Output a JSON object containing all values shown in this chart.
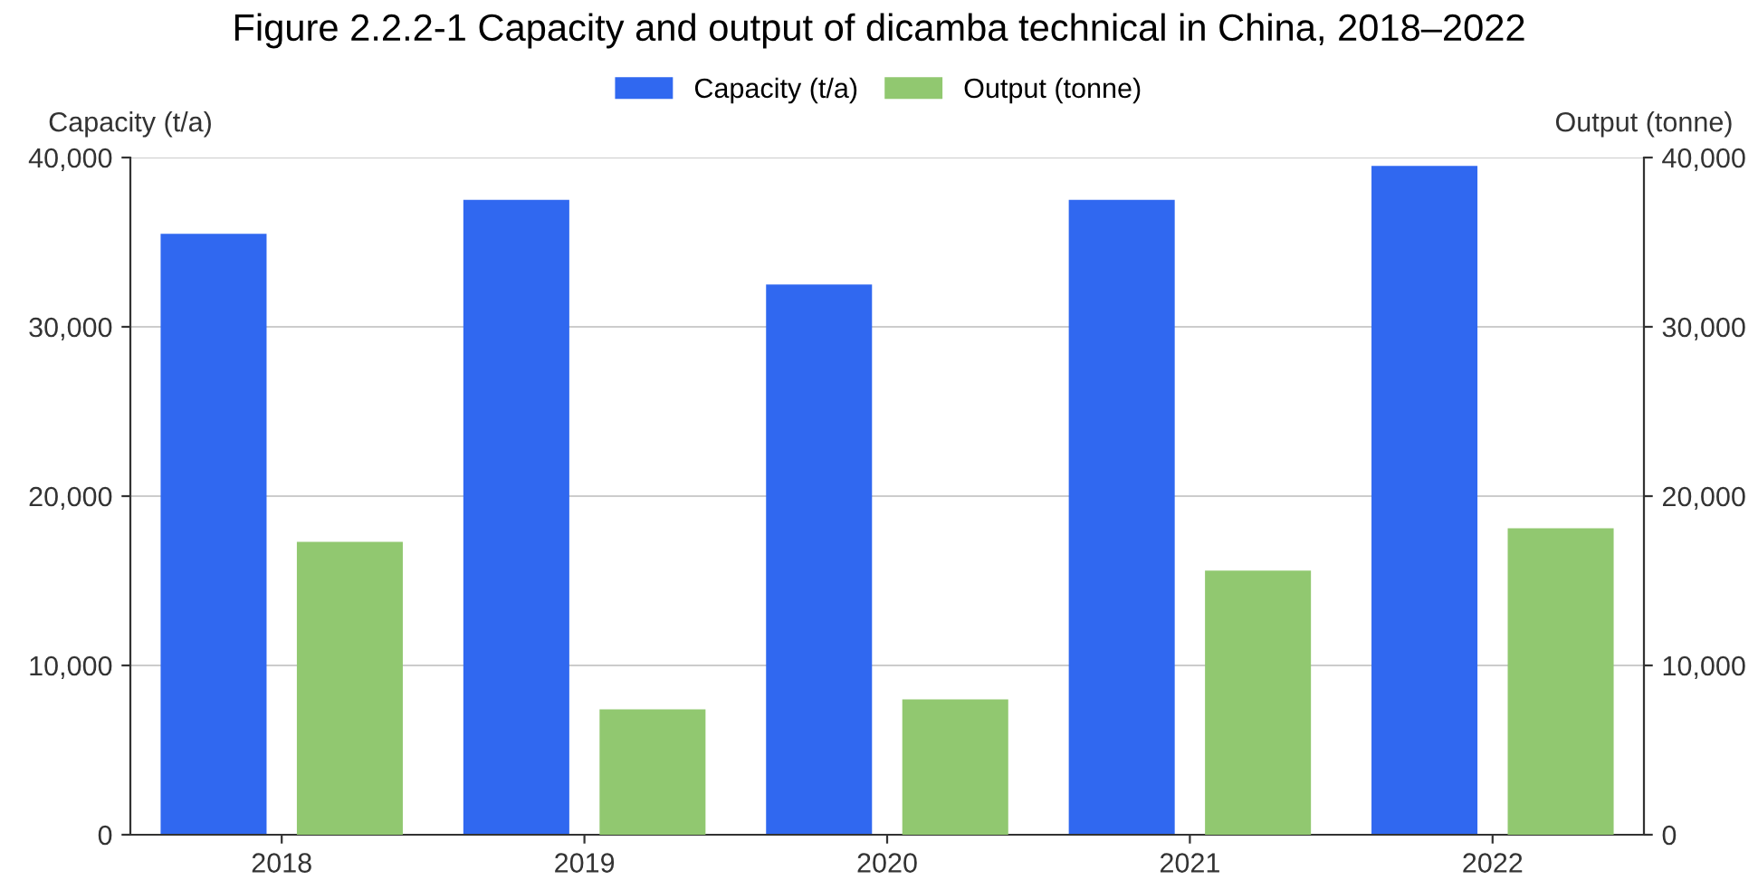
{
  "chart_data": {
    "type": "bar",
    "title": "Figure 2.2.2-1 Capacity and output of dicamba technical in China, 2018–2022",
    "ylabel": "Capacity (t/a)",
    "y2label": "Output (tonne)",
    "categories": [
      "2018",
      "2019",
      "2020",
      "2021",
      "2022"
    ],
    "series": [
      {
        "name": "Capacity (t/a)",
        "color": "#3068f0",
        "values": [
          35500,
          37500,
          32500,
          37500,
          39500
        ]
      },
      {
        "name": "Output (tonne)",
        "color": "#91c870",
        "values": [
          17300,
          7400,
          8000,
          15600,
          18100
        ],
        "axis": "y2"
      }
    ],
    "ylim": [
      0,
      40000
    ],
    "yticks": [
      {
        "value": 0,
        "label": "0"
      },
      {
        "value": 10000,
        "label": "10,000"
      },
      {
        "value": 20000,
        "label": "20,000"
      },
      {
        "value": 30000,
        "label": "30,000"
      },
      {
        "value": 40000,
        "label": "40,000"
      }
    ],
    "y2lim": [
      0,
      40000
    ],
    "y2ticks": [
      {
        "value": 0,
        "label": "0"
      },
      {
        "value": 10000,
        "label": "10,000"
      },
      {
        "value": 20000,
        "label": "20,000"
      },
      {
        "value": 30000,
        "label": "30,000"
      },
      {
        "value": 40000,
        "label": "40,000"
      }
    ],
    "grid": "y",
    "legend": "top"
  }
}
